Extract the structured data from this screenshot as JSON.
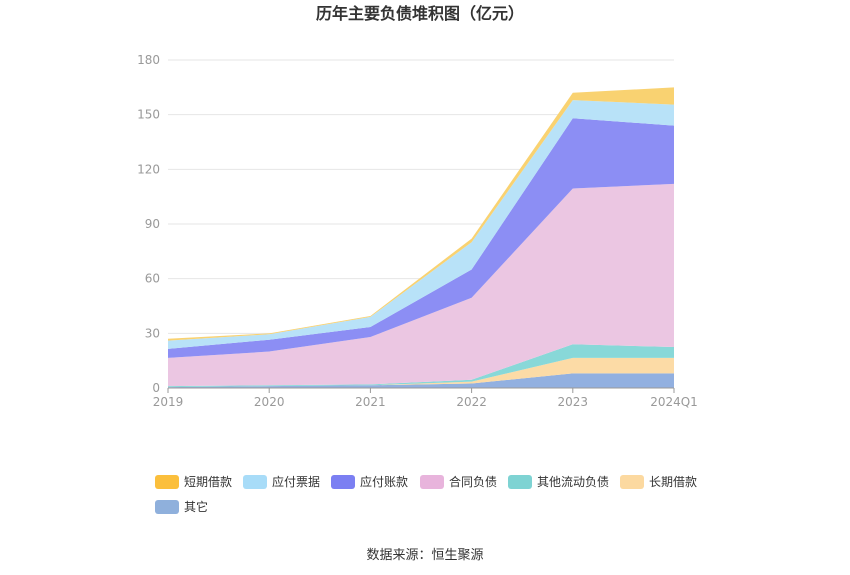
{
  "chart_data": {
    "type": "area",
    "title": "历年主要负债堆积图（亿元）",
    "categories": [
      "2019",
      "2020",
      "2021",
      "2022",
      "2023",
      "2024Q1"
    ],
    "ylim": [
      0,
      180
    ],
    "yticks": [
      0,
      30,
      60,
      90,
      120,
      150,
      180
    ],
    "grid": true,
    "legend_position": "bottom",
    "series": [
      {
        "name": "其它",
        "color": "#92b0e0",
        "values": [
          0.5,
          1.0,
          1.5,
          2.5,
          8.0,
          8.0
        ]
      },
      {
        "name": "长期借款",
        "color": "#fcdba6",
        "values": [
          0.0,
          0.0,
          0.0,
          1.0,
          8.5,
          8.5
        ]
      },
      {
        "name": "其他流动负债",
        "color": "#88d8d8",
        "values": [
          0.5,
          0.5,
          0.5,
          1.0,
          7.5,
          6.0
        ]
      },
      {
        "name": "合同负债",
        "color": "#ebc6e2",
        "values": [
          15.5,
          18.5,
          26.0,
          45.0,
          85.5,
          89.5
        ]
      },
      {
        "name": "应付账款",
        "color": "#8c8ef4",
        "values": [
          5.0,
          6.5,
          5.5,
          15.5,
          38.5,
          32.0
        ]
      },
      {
        "name": "应付票据",
        "color": "#b8e2f8",
        "values": [
          4.5,
          3.0,
          5.5,
          15.0,
          10.0,
          11.5
        ]
      },
      {
        "name": "短期借款",
        "color": "#f9d271",
        "values": [
          1.0,
          0.5,
          0.5,
          2.0,
          4.0,
          9.5
        ]
      }
    ],
    "legend_order": [
      "短期借款",
      "应付票据",
      "应付账款",
      "合同负债",
      "其他流动负债",
      "长期借款",
      "其它"
    ],
    "legend_colors": {
      "短期借款": "#fbbf3c",
      "应付票据": "#a8dcf8",
      "应付账款": "#7b7ff2",
      "合同负债": "#e8b4dc",
      "其他流动负债": "#7ed3d3",
      "长期借款": "#fcd9a0",
      "其它": "#8fb0dc"
    }
  },
  "source_text": "数据来源：恒生聚源"
}
